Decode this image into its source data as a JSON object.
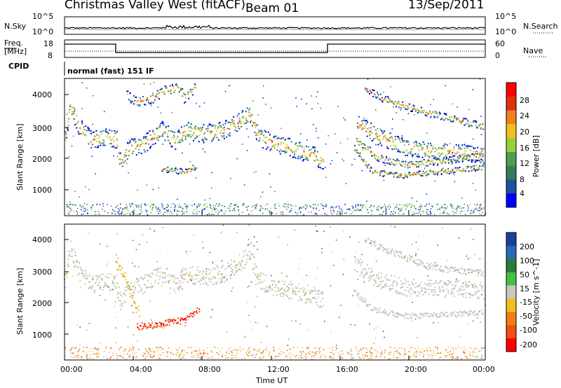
{
  "header": {
    "station": "Christmas Valley West (fitACF)",
    "beam": "Beam 01",
    "date": "13/Sep/2011"
  },
  "noise_panel": {
    "left_label": "N.Sky",
    "right_label": "N.Search",
    "left_ticks": [
      "10^5",
      "10^0"
    ],
    "right_ticks": [
      "10^5",
      "10^0"
    ]
  },
  "freq_panel": {
    "left_label_line1": "Freq.",
    "left_label_line2": "[MHz]",
    "right_label": "Nave",
    "left_ticks": [
      "18",
      "8"
    ],
    "right_ticks": [
      "60",
      "0"
    ]
  },
  "cpid": {
    "label": "CPID",
    "value": "normal (fast) 151 IF"
  },
  "colors": {
    "power_scale": [
      "#0000ff",
      "#1f4fa0",
      "#3a7a5a",
      "#4e9e4e",
      "#9ad13a",
      "#f0c020",
      "#f08020",
      "#e03010",
      "#ff0000"
    ],
    "velocity_scale": [
      "#1a3fa0",
      "#2a6ab0",
      "#2a7a3a",
      "#44c044",
      "#c8c8c0",
      "#f0c020",
      "#f08010",
      "#f05010",
      "#ff0000"
    ]
  },
  "chart_data": [
    {
      "type": "heatmap",
      "name": "power",
      "ylabel": "Slant Range [km]",
      "ylim": [
        200,
        4500
      ],
      "yticks": [
        "1000",
        "2000",
        "3000",
        "4000"
      ],
      "xlim": [
        "00:00",
        "24:00"
      ],
      "colorbar_label": "Power [dB]",
      "colorbar_ticks": [
        "4",
        "8",
        "12",
        "16",
        "20",
        "24",
        "28"
      ],
      "clim": [
        0,
        32
      ]
    },
    {
      "type": "heatmap",
      "name": "velocity",
      "ylabel": "Slant Range [km]",
      "ylim": [
        200,
        4500
      ],
      "yticks": [
        "1000",
        "2000",
        "3000",
        "4000"
      ],
      "xlim": [
        "00:00",
        "24:00"
      ],
      "xticks": [
        "00:00",
        "04:00",
        "08:00",
        "12:00",
        "16:00",
        "20:00",
        "00:00"
      ],
      "xlabel": "Time UT",
      "colorbar_label": "Velocity [m s^-1]",
      "colorbar_ticks": [
        "200",
        "100",
        "50",
        "15",
        "-15",
        "-50",
        "-100",
        "-200"
      ],
      "clim": [
        -250,
        250
      ]
    }
  ]
}
